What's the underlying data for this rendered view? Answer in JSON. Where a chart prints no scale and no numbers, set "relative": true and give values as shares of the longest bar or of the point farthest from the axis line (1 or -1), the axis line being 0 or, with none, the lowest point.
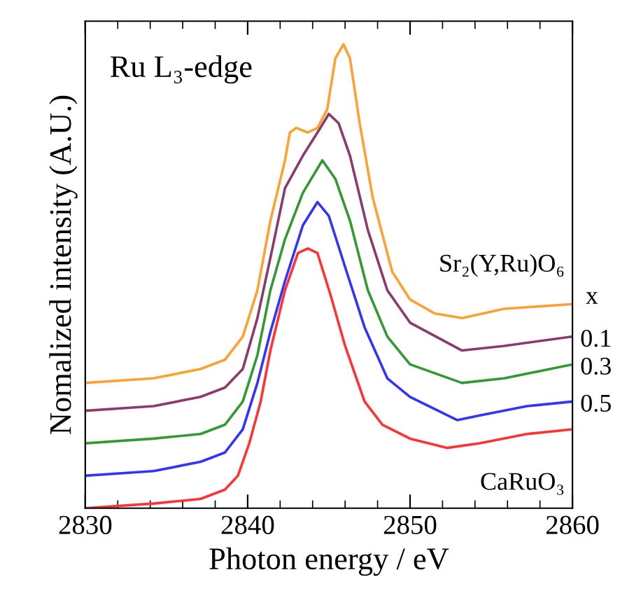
{
  "chart_data": {
    "type": "line",
    "relative": true,
    "xlabel": "Photon energy / eV",
    "ylabel": "Nomalized intensity (A.U.)",
    "xlim": [
      2830,
      2860
    ],
    "xticks": [
      2830,
      2840,
      2850,
      2860
    ],
    "tick_labels": "x",
    "legend_title": "x",
    "annotations": [
      "Ru L₃-edge"
    ],
    "line_style": "solid",
    "marker": "none",
    "series": [
      {
        "name": "CaRuO₃",
        "color": "#ff3333",
        "x": [
          2830,
          2834.2,
          2837.1,
          2838.6,
          2839.4,
          2840.1,
          2840.8,
          2841.4,
          2842.3,
          2843.1,
          2843.7,
          2844.3,
          2845.1,
          2846.0,
          2847.2,
          2848.3,
          2850.0,
          2852.3,
          2854.3,
          2857.2,
          2860
        ],
        "values": [
          0.0,
          0.01,
          0.02,
          0.04,
          0.07,
          0.14,
          0.23,
          0.34,
          0.47,
          0.55,
          0.56,
          0.55,
          0.46,
          0.35,
          0.23,
          0.18,
          0.15,
          0.13,
          0.14,
          0.16,
          0.17
        ]
      },
      {
        "name": "0.5",
        "color": "#3333ff",
        "x": [
          2830,
          2834.2,
          2837.1,
          2838.6,
          2839.7,
          2840.6,
          2841.4,
          2842.3,
          2843.4,
          2844.3,
          2845.0,
          2846.0,
          2847.2,
          2848.6,
          2850.0,
          2852.9,
          2854.3,
          2857.2,
          2860
        ],
        "values": [
          0.07,
          0.08,
          0.1,
          0.12,
          0.17,
          0.27,
          0.38,
          0.49,
          0.61,
          0.66,
          0.63,
          0.52,
          0.39,
          0.28,
          0.24,
          0.19,
          0.2,
          0.22,
          0.23
        ]
      },
      {
        "name": "0.3",
        "color": "#339933",
        "x": [
          2830,
          2834.2,
          2837.1,
          2838.6,
          2839.7,
          2840.6,
          2841.4,
          2842.3,
          2843.4,
          2844.6,
          2845.4,
          2846.3,
          2847.4,
          2848.6,
          2850.0,
          2853.2,
          2855.8,
          2860
        ],
        "values": [
          0.14,
          0.15,
          0.16,
          0.18,
          0.23,
          0.33,
          0.47,
          0.58,
          0.68,
          0.75,
          0.71,
          0.62,
          0.47,
          0.37,
          0.31,
          0.27,
          0.28,
          0.31
        ]
      },
      {
        "name": "0.1",
        "color": "#8b3a6b",
        "x": [
          2830,
          2834.2,
          2837.1,
          2838.6,
          2839.7,
          2840.6,
          2841.4,
          2842.3,
          2843.4,
          2844.3,
          2845.0,
          2845.6,
          2846.3,
          2847.4,
          2848.6,
          2850.0,
          2853.2,
          2855.8,
          2860
        ],
        "values": [
          0.21,
          0.22,
          0.24,
          0.26,
          0.3,
          0.41,
          0.54,
          0.69,
          0.76,
          0.81,
          0.85,
          0.83,
          0.76,
          0.6,
          0.47,
          0.4,
          0.34,
          0.35,
          0.37
        ]
      },
      {
        "name": "Sr₂(Y,Ru)O₆",
        "color": "#ffa033",
        "x": [
          2830,
          2834.2,
          2837.1,
          2838.6,
          2839.7,
          2840.6,
          2841.4,
          2842.3,
          2842.6,
          2843.0,
          2843.7,
          2844.3,
          2844.9,
          2845.4,
          2845.9,
          2846.3,
          2846.9,
          2847.7,
          2848.9,
          2850.0,
          2851.5,
          2853.2,
          2855.8,
          2860
        ],
        "values": [
          0.27,
          0.28,
          0.3,
          0.32,
          0.37,
          0.47,
          0.62,
          0.75,
          0.81,
          0.82,
          0.81,
          0.82,
          0.86,
          0.97,
          1.0,
          0.97,
          0.83,
          0.67,
          0.51,
          0.45,
          0.42,
          0.41,
          0.43,
          0.44
        ]
      }
    ]
  }
}
